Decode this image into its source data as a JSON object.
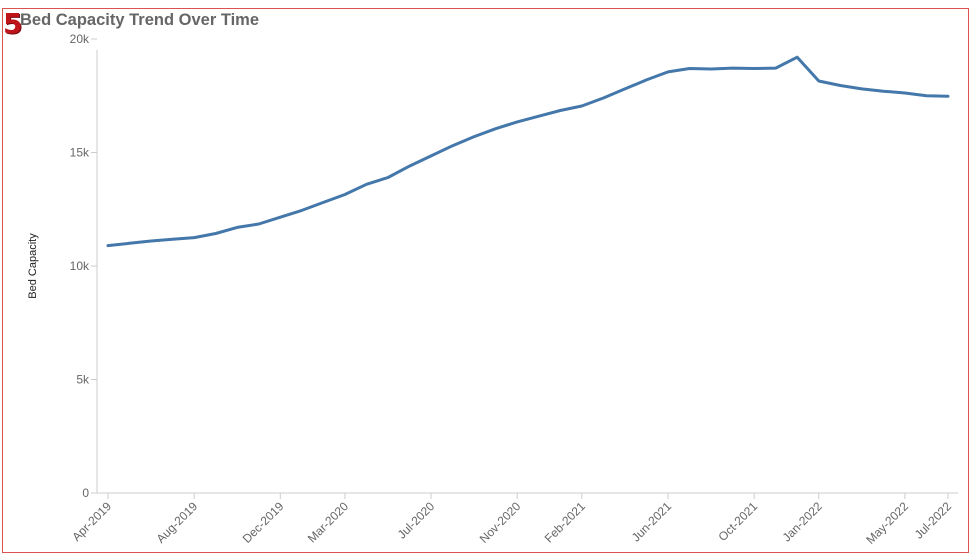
{
  "badge": "5",
  "colors": {
    "line": "#4477aa",
    "axis": "#cccccc",
    "frame": "#d9534f",
    "badge": "#c0141b"
  },
  "chart_data": {
    "type": "line",
    "title": "Bed Capacity Trend Over Time",
    "xlabel": "",
    "ylabel": "Bed Capacity",
    "ylim": [
      0,
      25000
    ],
    "yticks": [
      0,
      5000,
      10000,
      15000,
      20000
    ],
    "ytick_labels": [
      "0",
      "5k",
      "10k",
      "15k",
      "20k"
    ],
    "x": [
      "Apr-2019",
      "May-2019",
      "Jun-2019",
      "Jul-2019",
      "Aug-2019",
      "Sep-2019",
      "Oct-2019",
      "Nov-2019",
      "Dec-2019",
      "Jan-2020",
      "Feb-2020",
      "Mar-2020",
      "Apr-2020",
      "May-2020",
      "Jun-2020",
      "Jul-2020",
      "Aug-2020",
      "Sep-2020",
      "Oct-2020",
      "Nov-2020",
      "Dec-2020",
      "Jan-2021",
      "Feb-2021",
      "Mar-2021",
      "Apr-2021",
      "May-2021",
      "Jun-2021",
      "Jul-2021",
      "Aug-2021",
      "Sep-2021",
      "Oct-2021",
      "Nov-2021",
      "Dec-2021",
      "Jan-2022",
      "Feb-2022",
      "Mar-2022",
      "Apr-2022",
      "May-2022",
      "Jun-2022",
      "Jul-2022"
    ],
    "xtick_labels": [
      "Apr-2019",
      "Aug-2019",
      "Dec-2019",
      "Mar-2020",
      "Jul-2020",
      "Nov-2020",
      "Feb-2021",
      "Jun-2021",
      "Oct-2021",
      "Jan-2022",
      "May-2022",
      "Jul-2022"
    ],
    "series": [
      {
        "values": [
          10900,
          11000,
          11100,
          11180,
          11250,
          11430,
          11700,
          11850,
          12150,
          12450,
          12800,
          13150,
          13600,
          13900,
          14400,
          14850,
          15300,
          15700,
          16050,
          16350,
          16600,
          16850,
          17050,
          17400,
          17800,
          18200,
          18550,
          18700,
          18680,
          18720,
          18700,
          18720,
          19200,
          18150,
          17950,
          17800,
          17700,
          17620,
          17500,
          17480
        ]
      }
    ]
  }
}
